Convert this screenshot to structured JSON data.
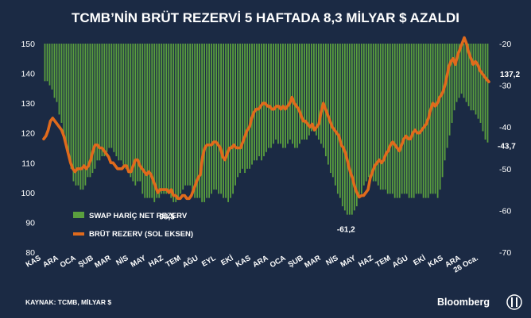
{
  "chart_data": {
    "type": "bar+line",
    "title": "TCMB’NİN BRÜT REZERVİ 5 HAFTADA 8,3 MİLYAR $ AZALDI",
    "source": "KAYNAK: TCMB, MİLYAR $",
    "brand": "Bloomberg",
    "left_axis": {
      "ylim": [
        80,
        150
      ],
      "ticks": [
        "80",
        "90",
        "100",
        "110",
        "120",
        "130",
        "140",
        "150"
      ]
    },
    "right_axis": {
      "ylim": [
        -70,
        -20
      ],
      "ticks": [
        "-20",
        "-30",
        "-40",
        "-50",
        "-60",
        "-70"
      ]
    },
    "x_ticks": [
      "KAS",
      "ARA",
      "OCA",
      "ŞUB",
      "MAR",
      "NİS",
      "MAY",
      "HAZ",
      "TEM",
      "AĞU",
      "EYL",
      "EKİ",
      "KAS",
      "ARA",
      "OCA",
      "ŞUB",
      "MAR",
      "NİS",
      "MAY",
      "HAZ",
      "TEM",
      "AĞU",
      "EKİ",
      "KAS",
      "ARA",
      "26 Oca."
    ],
    "series": [
      {
        "name": "SWAP HARİÇ NET REZERV",
        "axis": "right",
        "color": "#5a9f3e",
        "values": [
          -29,
          -29,
          -30,
          -31,
          -33,
          -34,
          -37,
          -39,
          -42,
          -45,
          -47,
          -50,
          -53,
          -54,
          -54,
          -55,
          -55,
          -54,
          -52,
          -52,
          -51,
          -50,
          -48,
          -48,
          -47,
          -47,
          -46,
          -45,
          -45,
          -46,
          -47,
          -48,
          -48,
          -49,
          -50,
          -51,
          -52,
          -53,
          -54,
          -53,
          -53,
          -56,
          -57,
          -57,
          -57,
          -57,
          -58,
          -57,
          -57,
          -56,
          -56,
          -56,
          -56,
          -57,
          -58,
          -58,
          -57,
          -56,
          -55,
          -54,
          -54,
          -54,
          -56,
          -57,
          -57,
          -57,
          -58,
          -58,
          -57,
          -57,
          -56,
          -55,
          -55,
          -56,
          -56,
          -57,
          -57,
          -58,
          -57,
          -56,
          -54,
          -52,
          -51,
          -50,
          -51,
          -50,
          -50,
          -49,
          -48,
          -48,
          -47,
          -48,
          -47,
          -46,
          -45,
          -45,
          -44,
          -43,
          -44,
          -44,
          -45,
          -45,
          -44,
          -43,
          -44,
          -45,
          -45,
          -44,
          -43,
          -43,
          -43,
          -42,
          -41,
          -41,
          -42,
          -43,
          -44,
          -45,
          -47,
          -49,
          -51,
          -52,
          -54,
          -56,
          -57,
          -59,
          -60,
          -61,
          -61,
          -61,
          -60,
          -59,
          -57,
          -56,
          -54,
          -53,
          -52,
          -52,
          -53,
          -53,
          -54,
          -55,
          -55,
          -55,
          -56,
          -56,
          -56,
          -57,
          -57,
          -57,
          -56,
          -56,
          -56,
          -57,
          -57,
          -57,
          -56,
          -56,
          -56,
          -57,
          -57,
          -57,
          -56,
          -56,
          -56,
          -57,
          -55,
          -52,
          -48,
          -45,
          -42,
          -39,
          -36,
          -34,
          -33,
          -32,
          -33,
          -34,
          -35,
          -36,
          -36,
          -37,
          -38,
          -39,
          -41,
          -43,
          -43.7
        ]
      },
      {
        "name": "BRÜT REZERV (SOL EKSEN)",
        "axis": "left",
        "color": "#e06a1c",
        "values": [
          118,
          119,
          121,
          124,
          125,
          124,
          123,
          122,
          121,
          119,
          116,
          113,
          110,
          108,
          107,
          108,
          108,
          108,
          109,
          108,
          109,
          111,
          114,
          116,
          116,
          115,
          115,
          114,
          113,
          112,
          110,
          110,
          109,
          108,
          108,
          108,
          109,
          109,
          107,
          107,
          109,
          111,
          111,
          109,
          108,
          107,
          106,
          107,
          106,
          104,
          102,
          100,
          101,
          101,
          101,
          101,
          100,
          101,
          99,
          99,
          98,
          98,
          99,
          99,
          98,
          98,
          99,
          101,
          103,
          105,
          106,
          112,
          115,
          116,
          116,
          116,
          117,
          117,
          116,
          115,
          112,
          111,
          113,
          115,
          115,
          116,
          115,
          115,
          115,
          117,
          119,
          121,
          122,
          125,
          127,
          128,
          128,
          129,
          130,
          130,
          129,
          129,
          128,
          128,
          129,
          129,
          128,
          129,
          128,
          129,
          130,
          132,
          130,
          129,
          128,
          126,
          124,
          124,
          123,
          122,
          123,
          121,
          122,
          123,
          127,
          130,
          128,
          126,
          124,
          122,
          121,
          120,
          119,
          116,
          115,
          113,
          110,
          107,
          105,
          102,
          100,
          98.5,
          99,
          99,
          100,
          101,
          105,
          107,
          109,
          110,
          111,
          110,
          111,
          113,
          114,
          116,
          117,
          116,
          115,
          114,
          116,
          118,
          119,
          118,
          118,
          120,
          121,
          120,
          120,
          121,
          122,
          123,
          125,
          128,
          130,
          129,
          130,
          132,
          133,
          135,
          138,
          142,
          144,
          145,
          143,
          146,
          148,
          150,
          152,
          150,
          147,
          145,
          143,
          144,
          143,
          141,
          140,
          139,
          138,
          137.2
        ]
      }
    ],
    "annotations": [
      "98,5",
      "-61,2",
      "137,2",
      "-43,7"
    ],
    "legend_placement": "lower-left",
    "grid": false
  }
}
